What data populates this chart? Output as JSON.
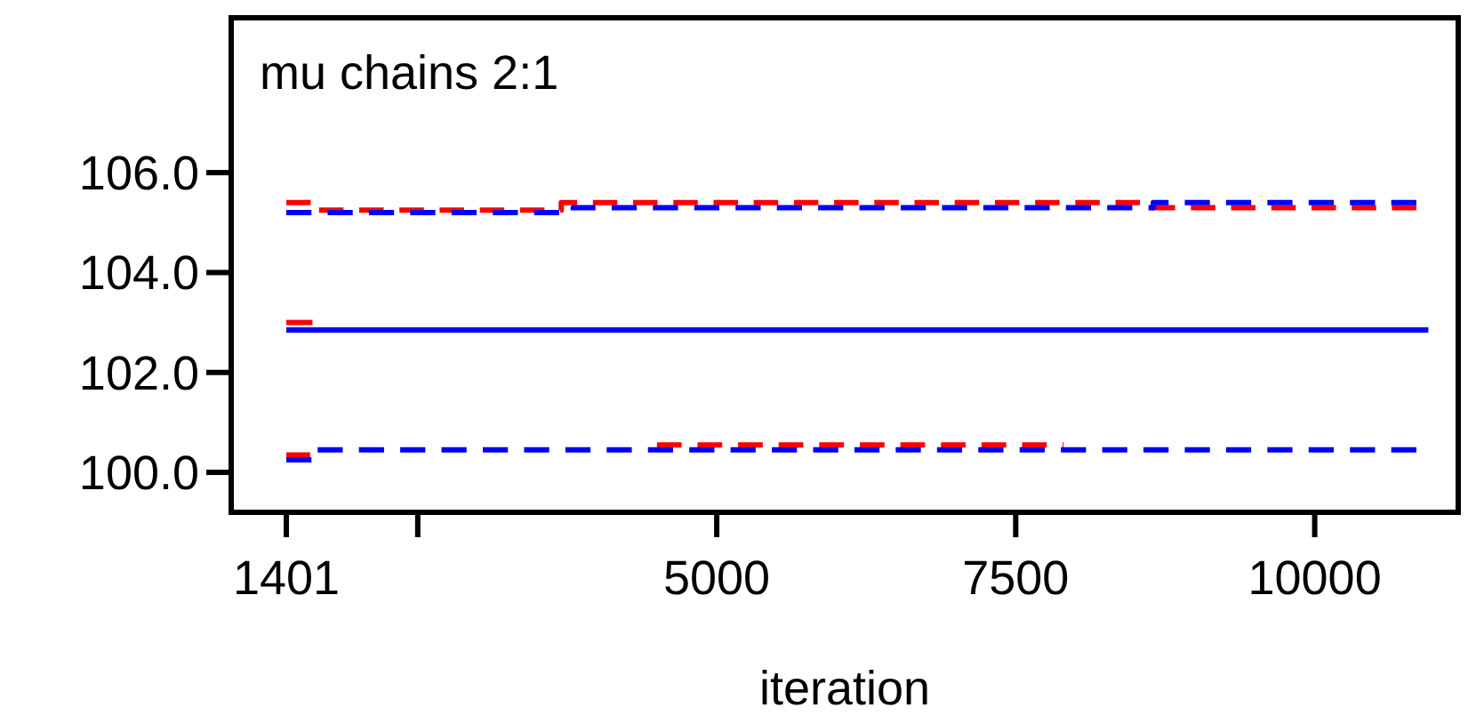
{
  "chart_data": {
    "type": "step",
    "title": "mu chains 2:1",
    "xlabel": "iteration",
    "xlim": [
      940,
      11200
    ],
    "ylim": [
      99.2,
      109.1
    ],
    "xticks": [
      1401,
      {
        "value": 2500,
        "label": null
      },
      5000,
      7500,
      10000
    ],
    "yticks": [
      {
        "value": 100,
        "label": "100.0"
      },
      {
        "value": 102,
        "label": "102.0"
      },
      {
        "value": 104,
        "label": "104.0"
      },
      {
        "value": 106,
        "label": "106.0"
      }
    ],
    "series": [
      {
        "color": "#ff0000",
        "line_style": "dashed",
        "x": [
          1401,
          1630,
          3700,
          8600,
          10850
        ],
        "values": [
          105.4,
          105.25,
          105.4,
          105.3,
          105.3
        ]
      },
      {
        "color": "#0000ff",
        "line_style": "dashed",
        "x": [
          1401,
          3800,
          8650,
          10850
        ],
        "values": [
          105.2,
          105.3,
          105.4,
          105.4
        ]
      },
      {
        "color": "#ff0000",
        "line_style": "dashed",
        "x": [
          1401,
          1600,
          4000,
          4500,
          7900
        ],
        "values": [
          100.35,
          100.35,
          null,
          100.55,
          100.55
        ]
      },
      {
        "color": "#0000ff",
        "line_style": "dashed",
        "x": [
          1401,
          1640,
          10850
        ],
        "values": [
          100.25,
          100.45,
          100.45
        ]
      },
      {
        "color": "#ff0000",
        "line_style": "solid",
        "x": [
          1401,
          1620
        ],
        "values": [
          103.0,
          103.0
        ]
      },
      {
        "color": "#0000ff",
        "line_style": "solid",
        "x": [
          1401,
          10950
        ],
        "values": [
          102.85,
          102.85
        ]
      }
    ]
  }
}
